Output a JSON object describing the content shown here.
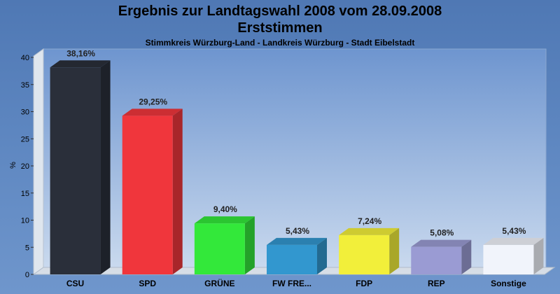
{
  "chart_data": {
    "type": "bar",
    "title": "Ergebnis zur Landtagswahl 2008 vom 28.09.2008",
    "title2": "Erststimmen",
    "subtitle": "Stimmkreis Würzburg-Land - Landkreis Würzburg - Stadt Eibelstadt",
    "xlabel": "",
    "ylabel": "%",
    "ylim": [
      0,
      40
    ],
    "yticks": [
      0,
      5,
      10,
      15,
      20,
      25,
      30,
      35,
      40
    ],
    "grid": false,
    "categories": [
      "CSU",
      "SPD",
      "GRÜNE",
      "FW FRE...",
      "FDP",
      "REP",
      "Sonstige"
    ],
    "values": [
      38.16,
      29.25,
      9.4,
      5.43,
      7.24,
      5.08,
      5.43
    ],
    "data_labels": [
      "38,16%",
      "29,25%",
      "9,40%",
      "5,43%",
      "7,24%",
      "5,08%",
      "5,43%"
    ],
    "colors": [
      "#2a2f3a",
      "#f0363c",
      "#33e83a",
      "#3297cf",
      "#f2ef3a",
      "#9a9bd3",
      "#f1f4fb"
    ]
  }
}
